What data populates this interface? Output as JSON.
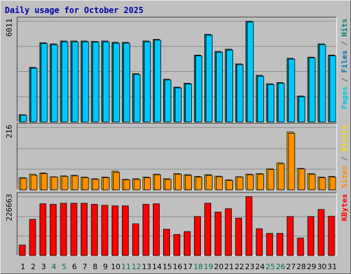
{
  "title": "Daily usage for October 2025",
  "chart_data": {
    "type": "bar",
    "title": "Daily usage for October 2025",
    "categories": [
      "1",
      "2",
      "3",
      "4",
      "5",
      "6",
      "7",
      "8",
      "9",
      "10",
      "11",
      "12",
      "13",
      "14",
      "15",
      "16",
      "17",
      "18",
      "19",
      "20",
      "21",
      "22",
      "23",
      "24",
      "25",
      "26",
      "27",
      "28",
      "29",
      "30",
      "31"
    ],
    "weekend_days": [
      "4",
      "5",
      "11",
      "12",
      "18",
      "19",
      "25",
      "26"
    ],
    "panels": [
      {
        "id": "hits",
        "y_max_label": "6011",
        "ylim": [
          0,
          6011
        ],
        "right_label_parts": [
          {
            "text": "Pages",
            "color": "#00c8e8"
          },
          {
            "text": " / ",
            "color": "#606060"
          },
          {
            "text": "Files",
            "color": "#0070c0"
          },
          {
            "text": " / ",
            "color": "#606060"
          },
          {
            "text": "Hits",
            "color": "#008070"
          }
        ],
        "series": [
          {
            "name": "Hits",
            "color": "#008080",
            "values": [
              430,
              3260,
              4730,
              4660,
              4830,
              4830,
              4830,
              4810,
              4830,
              4750,
              4750,
              2880,
              4830,
              4930,
              2550,
              2080,
              2310,
              3990,
              5230,
              4210,
              4340,
              3470,
              6011,
              2780,
              2280,
              2350,
              3800,
              1550,
              3870,
              4660,
              3990
            ]
          },
          {
            "name": "Files",
            "color": "#00c8ff",
            "values": [
              400,
              3210,
              4680,
              4610,
              4780,
              4780,
              4780,
              4760,
              4780,
              4700,
              4700,
              2830,
              4780,
              4880,
              2500,
              2030,
              2260,
              3940,
              5180,
              4160,
              4290,
              3420,
              5960,
              2730,
              2230,
              2300,
              3750,
              1500,
              3820,
              4610,
              3940
            ]
          }
        ]
      },
      {
        "id": "visits",
        "y_max_label": "216",
        "ylim": [
          0,
          216
        ],
        "right_label_parts": [
          {
            "text": "Sites",
            "color": "#ff8c00"
          },
          {
            "text": " / ",
            "color": "#606060"
          },
          {
            "text": "Visits",
            "color": "#ffd800"
          }
        ],
        "series": [
          {
            "name": "Visits",
            "color": "#ffc800",
            "values": [
              42,
              54,
              58,
              45,
              48,
              50,
              44,
              38,
              44,
              64,
              36,
              38,
              44,
              54,
              38,
              56,
              52,
              46,
              52,
              47,
              34,
              45,
              54,
              56,
              73,
              93,
              200,
              74,
              56,
              44,
              46
            ]
          },
          {
            "name": "Sites",
            "color": "#ff9000",
            "values": [
              40,
              50,
              56,
              44,
              46,
              48,
              42,
              36,
              42,
              60,
              34,
              36,
              42,
              52,
              36,
              54,
              50,
              44,
              50,
              45,
              32,
              44,
              52,
              54,
              70,
              90,
              196,
              72,
              54,
              42,
              44
            ]
          }
        ]
      },
      {
        "id": "kbytes",
        "y_max_label": "226663",
        "ylim": [
          0,
          226663
        ],
        "right_label_parts": [
          {
            "text": "KBytes",
            "color": "#ff0000"
          }
        ],
        "series": [
          {
            "name": "KBytes",
            "color": "#ff0000",
            "values": [
              40000,
              139000,
              199000,
              197000,
              201000,
              201000,
              201000,
              197000,
              193000,
              191000,
              191000,
              122000,
              197000,
              199000,
              101000,
              81000,
              92000,
              150000,
              201000,
              167000,
              180000,
              144000,
              226663,
              103000,
              85000,
              85000,
              150000,
              67000,
              150000,
              177000,
              151000
            ]
          }
        ]
      }
    ]
  }
}
